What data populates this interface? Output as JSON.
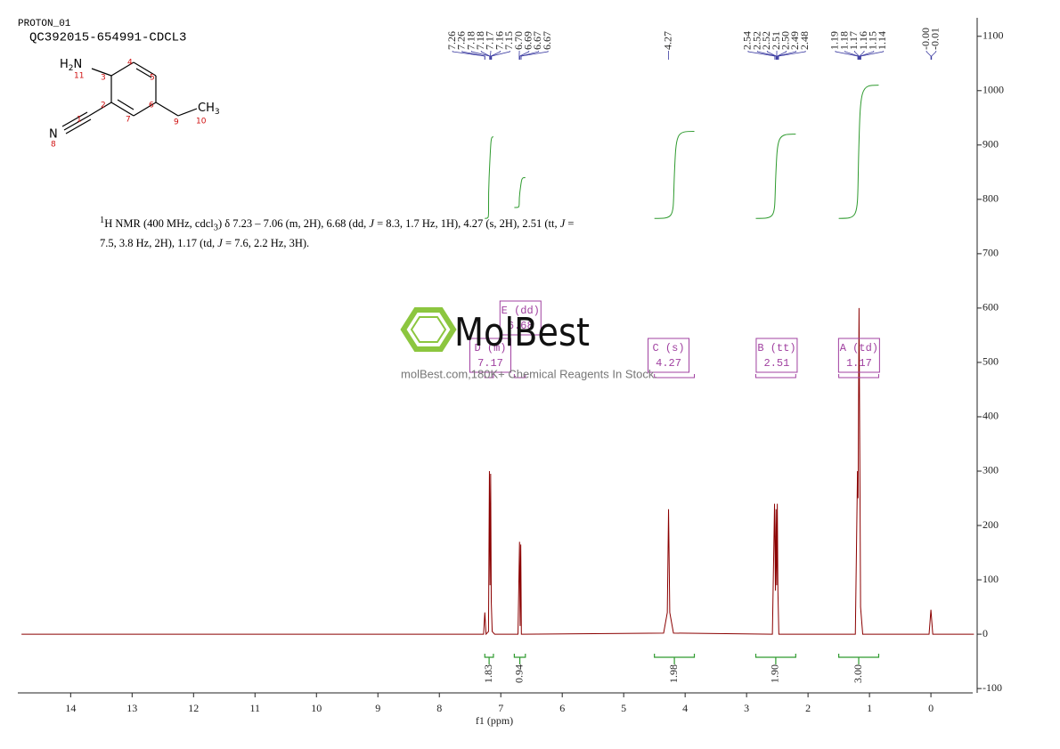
{
  "chart_data": {
    "type": "line",
    "title": "PROTON_01",
    "subtitle": "QC392015-654991-CDCL3",
    "x_label": "f1  (ppm)",
    "xlim": [
      14.86,
      -0.68
    ],
    "xticks": [
      14,
      13,
      12,
      11,
      10,
      9,
      8,
      7,
      6,
      5,
      4,
      3,
      2,
      1,
      0
    ],
    "ylim": [
      -108,
      1134
    ],
    "yticks": [
      -100,
      0,
      100,
      200,
      300,
      400,
      500,
      600,
      700,
      800,
      900,
      1000,
      1100
    ],
    "series": [
      {
        "name": "1H spectrum",
        "color": "#8b0000",
        "x": [
          14.8,
          7.28,
          7.26,
          7.24,
          7.2,
          7.185,
          7.175,
          7.165,
          7.155,
          7.14,
          7.1,
          6.72,
          6.695,
          6.685,
          6.675,
          6.665,
          6.64,
          4.35,
          4.29,
          4.27,
          4.25,
          4.19,
          2.58,
          2.545,
          2.53,
          2.52,
          2.51,
          2.5,
          2.49,
          2.475,
          2.44,
          1.23,
          1.195,
          1.185,
          1.17,
          1.155,
          1.145,
          1.11,
          0.03,
          0,
          -0.03,
          -0.7
        ],
        "values": [
          0,
          0,
          40,
          0,
          5,
          300,
          90,
          295,
          60,
          5,
          0,
          0,
          170,
          15,
          165,
          0,
          0,
          2,
          40,
          230,
          40,
          2,
          0,
          240,
          80,
          230,
          90,
          240,
          80,
          0,
          0,
          0,
          300,
          250,
          600,
          280,
          50,
          0,
          0,
          45,
          0,
          0
        ]
      }
    ],
    "peak_labels": [
      [
        "7.26",
        "7.26",
        "7.18",
        "7.18",
        "7.17",
        "7.16",
        "7.15",
        "6.70",
        "6.69",
        "6.67",
        "6.67"
      ],
      [
        "4.27"
      ],
      [
        "2.54",
        "2.52",
        "2.52",
        "2.51",
        "2.50",
        "2.49",
        "2.48"
      ],
      [
        "1.19",
        "1.18",
        "1.17",
        "1.16",
        "1.15",
        "1.14"
      ],
      [
        "-0.00",
        "-0.01"
      ]
    ],
    "integrals": {
      "color": "#2e9a2e",
      "ranges": [
        [
          7.26,
          7.12
        ],
        [
          6.78,
          6.6
        ],
        [
          4.5,
          3.85
        ],
        [
          2.85,
          2.2
        ],
        [
          1.5,
          0.85
        ]
      ],
      "values": [
        1.83,
        0.94,
        1.98,
        1.9,
        3
      ],
      "value_labels": [
        "1.83",
        "0.94",
        "1.98",
        "1.90",
        "3.00"
      ],
      "curves": [
        [
          765,
          915
        ],
        [
          785,
          840
        ],
        [
          765,
          925
        ],
        [
          765,
          920
        ],
        [
          765,
          1010
        ]
      ]
    },
    "multiplets": [
      {
        "label": "D (m)",
        "shift": "7.17"
      },
      {
        "label": "E (dd)",
        "shift": "6.68"
      },
      {
        "label": "C (s)",
        "shift": "4.27"
      },
      {
        "label": "B (tt)",
        "shift": "2.51"
      },
      {
        "label": "A (td)",
        "shift": "1.17"
      }
    ],
    "description": [
      "1",
      "H NMR (400 MHz, cdcl",
      "3",
      ") δ 7.23 – 7.06 (m, 2H), 6.68 (dd, ",
      "J",
      " = 8.3, 1.7 Hz, 1H), 4.27 (s, 2H), 2.51 (tt, ",
      "J",
      " = 7.5, 3.8 Hz, 2H), 1.17 (td, ",
      "J",
      " = 7.6, 2.2 Hz, 3H)."
    ],
    "structure": {
      "amine": [
        "H",
        "2",
        "N"
      ],
      "methyl": [
        "CH",
        "3"
      ],
      "nitrile_n": "N",
      "numbers": [
        "11",
        "3",
        "4",
        "5",
        "2",
        "6",
        "7",
        "9",
        "10",
        "1",
        "8"
      ]
    },
    "watermark": {
      "logo": "MolBest",
      "text": "molBest.com,180K+ Chemical Reagents In Stock."
    }
  }
}
